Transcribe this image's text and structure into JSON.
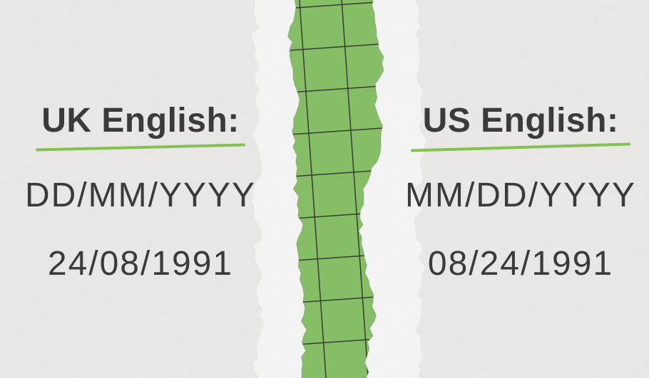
{
  "colors": {
    "background": "#f4f3f1",
    "text": "#3e3e3e",
    "underline_green": "#8ccb55",
    "paper_green": "#8dc86c",
    "grid_line": "#3a4035",
    "torn_white": "#ffffff",
    "torn_shade": "#e3e2df"
  },
  "columns": {
    "uk": {
      "heading": "UK English:",
      "format": "DD/MM/YYYY",
      "example": "24/08/1991"
    },
    "us": {
      "heading": "US English:",
      "format": "MM/DD/YYYY",
      "example": "08/24/1991"
    }
  }
}
